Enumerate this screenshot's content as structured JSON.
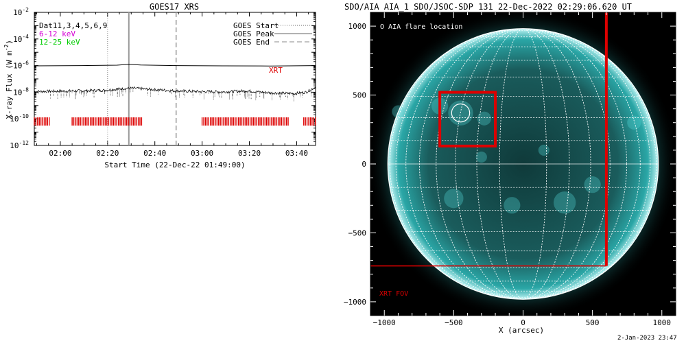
{
  "chart_data": [
    {
      "type": "line",
      "title": "GOES17 XRS",
      "xlabel": "Start Time (22-Dec-22 01:49:00)",
      "ylabel": "X-ray Flux (W m",
      "ylabel_exp": "-2",
      "ylabel_close": ")",
      "yscale": "log",
      "ylim_exp": [
        -12,
        -2
      ],
      "y_ticks": [
        {
          "exp": -2,
          "label": "10",
          "sup": "-2"
        },
        {
          "exp": -4,
          "label": "10",
          "sup": "-4"
        },
        {
          "exp": -6,
          "label": "10",
          "sup": "-6"
        },
        {
          "exp": -8,
          "label": "10",
          "sup": "-8"
        },
        {
          "exp": -10,
          "label": "10",
          "sup": "-10"
        },
        {
          "exp": -12,
          "label": "10",
          "sup": "-12"
        }
      ],
      "xlim_minutes": [
        0,
        119
      ],
      "x_ticks": [
        {
          "min": 11,
          "label": "02:00"
        },
        {
          "min": 31,
          "label": "02:20"
        },
        {
          "min": 51,
          "label": "02:40"
        },
        {
          "min": 71,
          "label": "03:00"
        },
        {
          "min": 91,
          "label": "03:20"
        },
        {
          "min": 111,
          "label": "03:40"
        }
      ],
      "top_left_legend": [
        {
          "text": "Dat11,3,4,5,6,9",
          "color": "#000000"
        },
        {
          "text": "6-12 keV",
          "color": "#d400d4"
        },
        {
          "text": "12-25 keV",
          "color": "#00cc00"
        }
      ],
      "line_legend": [
        {
          "text": "GOES Start",
          "style": "dotted"
        },
        {
          "text": "GOES Peak",
          "style": "solid"
        },
        {
          "text": "GOES End",
          "style": "dashed"
        }
      ],
      "events": {
        "start_min": 31,
        "peak_min": 40,
        "end_min": 60
      },
      "series": [
        {
          "name": "",
          "color": "#000000",
          "points": [
            [
              0,
              -6.02
            ],
            [
              20,
              -6.0
            ],
            [
              35,
              -5.97
            ],
            [
              40,
              -5.9
            ],
            [
              45,
              -5.96
            ],
            [
              60,
              -6.0
            ],
            [
              80,
              -6.02
            ],
            [
              100,
              -6.03
            ],
            [
              119,
              -6.0
            ]
          ]
        },
        {
          "name": "",
          "color": "#000000",
          "noisy": true,
          "points": [
            [
              0,
              -7.95
            ],
            [
              10,
              -7.92
            ],
            [
              20,
              -7.9
            ],
            [
              30,
              -7.85
            ],
            [
              38,
              -7.72
            ],
            [
              42,
              -7.7
            ],
            [
              50,
              -7.8
            ],
            [
              60,
              -7.9
            ],
            [
              70,
              -7.95
            ],
            [
              80,
              -7.97
            ],
            [
              90,
              -7.9
            ],
            [
              100,
              -8.05
            ],
            [
              110,
              -8.1
            ],
            [
              115,
              -8.0
            ],
            [
              119,
              -7.6
            ]
          ]
        }
      ],
      "xrt_label": {
        "text": "XRT",
        "color": "#dd0000"
      },
      "xrt_bar_y_exp": -10.2,
      "xrt_segments_min": [
        [
          0,
          7
        ],
        [
          16,
          46
        ],
        [
          71,
          108
        ],
        [
          114,
          119
        ]
      ]
    },
    {
      "type": "image",
      "title": "SDO/AIA AIA_1 SDO/JSOC-SDP 131 22-Dec-2022 02:29:06.620 UT",
      "xlabel": "X (arcsec)",
      "xlim": [
        -1100,
        1100
      ],
      "ylim": [
        -1100,
        1100
      ],
      "x_ticks": [
        -1000,
        -500,
        0,
        500,
        1000
      ],
      "y_ticks": [
        1000,
        500,
        0,
        -500,
        -1000
      ],
      "solar_radius_arcsec": 975,
      "flare_location_label": "O AIA flare location",
      "flare_location_arcsec": [
        -450,
        370
      ],
      "flare_circle_radius_arcsec": 65,
      "flare_box_arcsec": {
        "x1": -600,
        "x2": -200,
        "y1": 130,
        "y2": 520
      },
      "xrt_fov_label": "XRT FOV",
      "xrt_fov_color": "#dd0000",
      "xrt_fov_arcsec": {
        "x1": -1100,
        "x2": 600,
        "y1": -740,
        "y2": 1100
      },
      "disk_color": "#2aa6a6",
      "timestamp": "2-Jan-2023 23:47"
    }
  ]
}
